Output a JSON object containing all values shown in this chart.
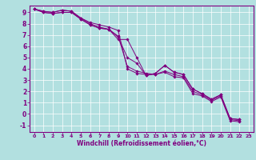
{
  "xlabel": "Windchill (Refroidissement éolien,°C)",
  "bg_color": "#b2e0e0",
  "line_color": "#800080",
  "grid_color": "#ffffff",
  "xlim": [
    -0.5,
    23.5
  ],
  "ylim": [
    -1.6,
    9.6
  ],
  "xticks": [
    0,
    1,
    2,
    3,
    4,
    5,
    6,
    7,
    8,
    9,
    10,
    11,
    12,
    13,
    14,
    15,
    16,
    17,
    18,
    19,
    20,
    21,
    22,
    23
  ],
  "yticks": [
    -1,
    0,
    1,
    2,
    3,
    4,
    5,
    6,
    7,
    8,
    9
  ],
  "lines": [
    [
      9.3,
      9.1,
      9.0,
      9.2,
      9.1,
      8.5,
      8.1,
      7.9,
      7.7,
      7.4,
      4.0,
      3.6,
      3.5,
      3.5,
      3.7,
      3.3,
      3.2,
      1.8,
      1.6,
      1.1,
      1.5,
      -0.6,
      -0.7
    ],
    [
      9.3,
      9.1,
      9.0,
      9.2,
      9.1,
      8.5,
      8.0,
      7.7,
      7.5,
      6.9,
      4.2,
      3.8,
      3.6,
      3.5,
      3.8,
      3.5,
      3.3,
      2.0,
      1.7,
      1.2,
      1.6,
      -0.5,
      -0.6
    ],
    [
      9.3,
      9.0,
      8.9,
      9.0,
      9.0,
      8.4,
      7.9,
      7.6,
      7.5,
      6.8,
      5.0,
      4.5,
      3.4,
      3.6,
      4.3,
      3.7,
      3.5,
      2.2,
      1.8,
      1.3,
      1.7,
      -0.4,
      -0.5
    ],
    [
      9.3,
      9.0,
      8.9,
      9.0,
      9.0,
      8.4,
      7.9,
      7.6,
      7.5,
      6.6,
      6.6,
      5.0,
      3.4,
      3.6,
      4.3,
      3.7,
      3.5,
      2.2,
      1.8,
      1.3,
      1.7,
      -0.4,
      -0.5
    ]
  ]
}
